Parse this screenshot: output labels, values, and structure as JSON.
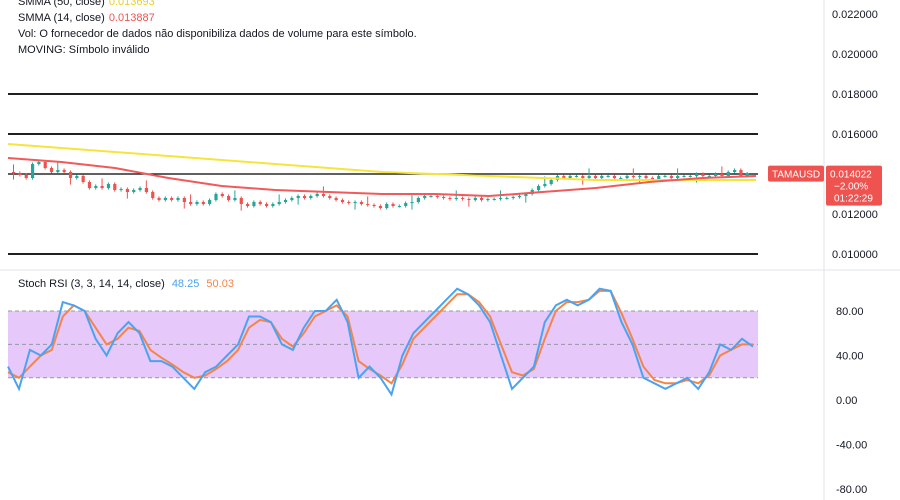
{
  "legend": {
    "smma50_label": "SMMA (50, close)",
    "smma50_value": "0.013693",
    "smma14_label": "SMMA (14, close)",
    "smma14_value": "0.013887",
    "vol_note": "Vol: O fornecedor de dados não disponibiliza dados de volume para este símbolo.",
    "moving_note": "MOVING: Símbolo inválido"
  },
  "stoch_legend": {
    "label": "Stoch RSI (3, 3, 14, 14, close)",
    "k_value": "48.25",
    "d_value": "50.03"
  },
  "price_tag": {
    "symbol": "TAMAUSD",
    "price": "0.014022",
    "change": "−2.00%",
    "countdown": "01:22:29"
  },
  "colors": {
    "up": "#26a69a",
    "down": "#ef5350",
    "smma50": "#f5e53b",
    "smma14": "#f05a5a",
    "stoch_k": "#4aa3f0",
    "stoch_d": "#f4854a",
    "stoch_band": "#e6c8fb",
    "tag_bg": "#ef5350"
  },
  "chart_data": [
    {
      "type": "candlestick",
      "title": "",
      "y_ticks": [
        "0.022000",
        "0.020000",
        "0.018000",
        "0.016000",
        "0.012000",
        "0.010000"
      ],
      "ylim": [
        0.0093,
        0.0227
      ],
      "horizontal_levels": [
        0.018,
        0.016,
        0.014,
        0.01
      ],
      "smma50": [
        0.0155,
        0.0153,
        0.0151,
        0.0149,
        0.0147,
        0.0145,
        0.0143,
        0.0141,
        0.014,
        0.0139,
        0.0138,
        0.0137,
        0.0137,
        0.0137,
        0.0137
      ],
      "smma14": [
        0.0148,
        0.0146,
        0.0143,
        0.0138,
        0.0134,
        0.0132,
        0.0131,
        0.013,
        0.013,
        0.0129,
        0.0131,
        0.0133,
        0.0136,
        0.0138,
        0.0139
      ],
      "closes": [
        0.01405,
        0.01395,
        0.0138,
        0.0145,
        0.0146,
        0.0143,
        0.0141,
        0.0142,
        0.0141,
        0.0138,
        0.0139,
        0.0136,
        0.0133,
        0.0134,
        0.0133,
        0.0135,
        0.0132,
        0.01325,
        0.0131,
        0.0132,
        0.0133,
        0.0131,
        0.0128,
        0.0127,
        0.0128,
        0.0127,
        0.0128,
        0.0126,
        0.0125,
        0.0126,
        0.0125,
        0.0127,
        0.013,
        0.0129,
        0.0127,
        0.0128,
        0.0125,
        0.0124,
        0.0126,
        0.0125,
        0.0124,
        0.0125,
        0.0126,
        0.0127,
        0.0128,
        0.0129,
        0.0128,
        0.0129,
        0.013,
        0.0129,
        0.0128,
        0.0127,
        0.0126,
        0.01255,
        0.0126,
        0.0125,
        0.01245,
        0.0124,
        0.0123,
        0.0125,
        0.0124,
        0.0124,
        0.01255,
        0.0126,
        0.0128,
        0.0129,
        0.0129,
        0.01285,
        0.0128,
        0.01275,
        0.0128,
        0.01275,
        0.0127,
        0.0128,
        0.0127,
        0.01275,
        0.01275,
        0.0128,
        0.0128,
        0.01285,
        0.0129,
        0.013,
        0.0132,
        0.0134,
        0.0135,
        0.0137,
        0.0139,
        0.0138,
        0.0139,
        0.0139,
        0.0138,
        0.0139,
        0.0138,
        0.0139,
        0.0139,
        0.0138,
        0.0138,
        0.0139,
        0.01385,
        0.0139,
        0.0138,
        0.0137,
        0.0139,
        0.0139,
        0.0138,
        0.0139,
        0.0139,
        0.0139,
        0.014,
        0.0139,
        0.0139,
        0.014,
        0.0139,
        0.0141,
        0.0142,
        0.0139,
        0.01402
      ]
    },
    {
      "type": "line",
      "title": "",
      "y_ticks": [
        "80.00",
        "40.00",
        "0.00",
        "-40.00",
        "-80.00"
      ],
      "ylim": [
        -88,
        115
      ],
      "band": [
        20,
        80
      ],
      "midline": 50,
      "series": [
        {
          "name": "K",
          "values": [
            30,
            10,
            45,
            40,
            50,
            88,
            85,
            80,
            55,
            40,
            60,
            70,
            60,
            35,
            35,
            30,
            20,
            10,
            25,
            30,
            40,
            50,
            75,
            75,
            70,
            50,
            45,
            65,
            80,
            80,
            90,
            70,
            20,
            30,
            20,
            5,
            40,
            60,
            70,
            80,
            90,
            100,
            95,
            85,
            70,
            40,
            10,
            20,
            30,
            70,
            85,
            90,
            85,
            90,
            100,
            98,
            70,
            50,
            20,
            15,
            10,
            15,
            20,
            10,
            25,
            50,
            45,
            55,
            48
          ]
        },
        {
          "name": "D",
          "values": [
            25,
            20,
            30,
            40,
            45,
            75,
            85,
            80,
            65,
            50,
            55,
            65,
            62,
            45,
            38,
            32,
            25,
            20,
            22,
            28,
            35,
            45,
            65,
            72,
            70,
            55,
            48,
            60,
            75,
            80,
            85,
            75,
            35,
            28,
            22,
            15,
            32,
            55,
            65,
            75,
            85,
            95,
            95,
            88,
            75,
            50,
            25,
            22,
            28,
            55,
            80,
            88,
            88,
            90,
            98,
            98,
            78,
            55,
            30,
            18,
            15,
            15,
            18,
            15,
            22,
            40,
            45,
            50,
            50
          ]
        }
      ]
    }
  ]
}
